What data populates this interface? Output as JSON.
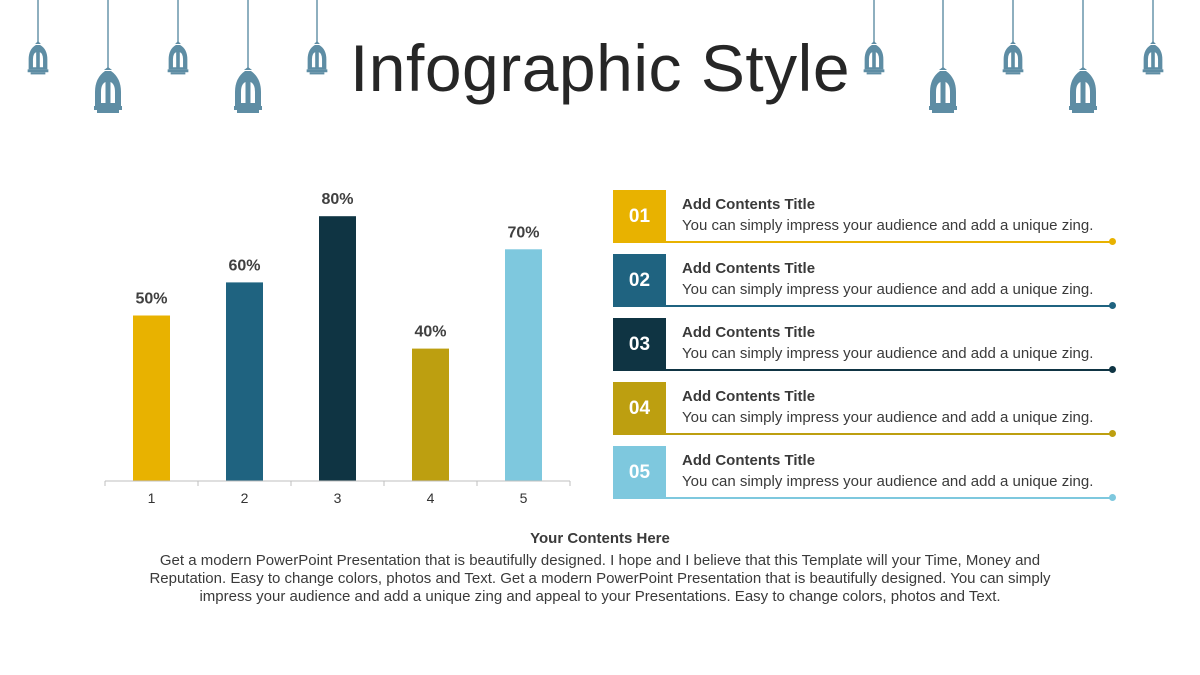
{
  "slide": {
    "title": "Infographic Style"
  },
  "colors": {
    "lantern": "#5e8da4",
    "axis": "#bfbfbf",
    "series": [
      "#e8b200",
      "#1f6380",
      "#0f3443",
      "#bd9f10",
      "#7ec8de"
    ]
  },
  "chart_data": {
    "type": "bar",
    "categories": [
      "1",
      "2",
      "3",
      "4",
      "5"
    ],
    "values": [
      50,
      60,
      80,
      40,
      70
    ],
    "data_labels": [
      "50%",
      "60%",
      "80%",
      "40%",
      "70%"
    ],
    "title": "",
    "xlabel": "",
    "ylabel": "",
    "ylim": [
      0,
      100
    ],
    "grid": false,
    "legend": "none"
  },
  "items": [
    {
      "number": "01",
      "title": "Add Contents Title",
      "text": "You can simply impress your audience and add a unique zing.",
      "color": "#e8b200"
    },
    {
      "number": "02",
      "title": "Add Contents Title",
      "text": "You can simply impress your audience and add a unique zing.",
      "color": "#1f6380"
    },
    {
      "number": "03",
      "title": "Add Contents Title",
      "text": "You can simply impress your audience and add a unique zing.",
      "color": "#0f3443"
    },
    {
      "number": "04",
      "title": "Add Contents Title",
      "text": "You can simply impress your audience and add a unique zing.",
      "color": "#bd9f10"
    },
    {
      "number": "05",
      "title": "Add Contents Title",
      "text": "You can simply impress your audience and add a unique zing.",
      "color": "#7ec8de"
    }
  ],
  "footer": {
    "title": "Your Contents Here",
    "text": "Get a modern PowerPoint  Presentation that is beautifully designed. I hope and I believe that this Template will your Time, Money and Reputation. Easy to change colors, photos and Text. Get a modern PowerPoint  Presentation that is beautifully designed. You can simply impress your audience and add a unique zing and appeal to your Presentations. Easy to change colors, photos and Text."
  }
}
